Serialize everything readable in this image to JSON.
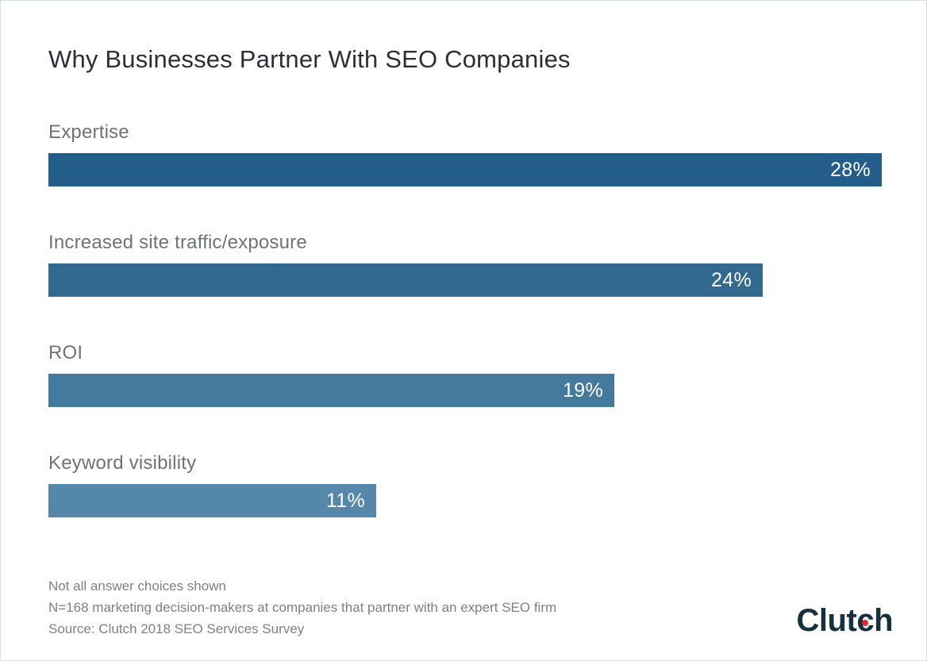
{
  "title": "Why Businesses Partner With SEO Companies",
  "chart_data": {
    "type": "bar",
    "orientation": "horizontal",
    "title": "Why Businesses Partner With SEO Companies",
    "categories": [
      "Expertise",
      "Increased site traffic/exposure",
      "ROI",
      "Keyword visibility"
    ],
    "values": [
      28,
      24,
      19,
      11
    ],
    "value_labels": [
      "28%",
      "24%",
      "19%",
      "11%"
    ],
    "bar_colors": [
      "#235e8a",
      "#31698f",
      "#447a9e",
      "#5587aa"
    ],
    "xlim": [
      0,
      28
    ],
    "grid": false,
    "legend": false,
    "value_label_position": "inside-end",
    "label_color": "#6e7378",
    "value_text_color": "#ffffff"
  },
  "footnotes": {
    "line1": "Not all answer choices shown",
    "line2": "N=168 marketing decision-makers at companies that partner with an expert SEO firm",
    "line3": "Source: Clutch 2018 SEO Services Survey"
  },
  "logo": {
    "pre": "Clut",
    "c": "c",
    "post": "h",
    "text_color": "#16303e",
    "dot_color": "#e8252a"
  }
}
